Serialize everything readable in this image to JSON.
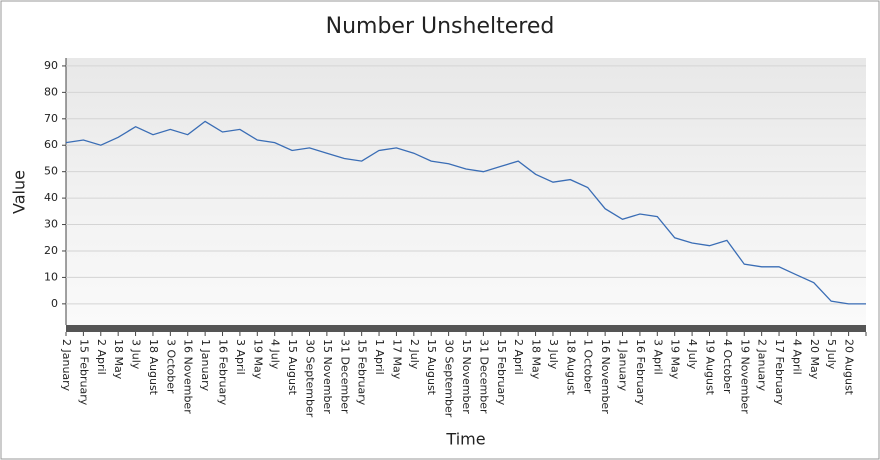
{
  "chart_data": {
    "type": "line",
    "title": "Number Unsheltered",
    "x_label": "Time",
    "y_label": "Value",
    "categories": [
      "2 January",
      "15 February",
      "2 April",
      "18 May",
      "3 July",
      "18 August",
      "3 October",
      "16 November",
      "1 January",
      "16 February",
      "3 April",
      "19 May",
      "4 July",
      "15 August",
      "30 September",
      "15 November",
      "31 December",
      "15 February",
      "1 April",
      "17 May",
      "2 July",
      "15 August",
      "30 September",
      "15 November",
      "31 December",
      "15 February",
      "2 April",
      "18 May",
      "3 July",
      "18 August",
      "1 October",
      "16 November",
      "1 January",
      "16 February",
      "3 April",
      "19 May",
      "4 July",
      "19 August",
      "4 October",
      "19 November",
      "2 January",
      "17 February",
      "4 April",
      "20 May",
      "5 July",
      "20 August",
      null
    ],
    "values": [
      61,
      62,
      60,
      63,
      67,
      64,
      66,
      64,
      69,
      65,
      66,
      62,
      61,
      58,
      59,
      57,
      55,
      54,
      58,
      59,
      57,
      54,
      53,
      51,
      50,
      52,
      54,
      49,
      46,
      47,
      44,
      36,
      32,
      34,
      33,
      25,
      23,
      22,
      24,
      15,
      14,
      14,
      11,
      8,
      1,
      0,
      0
    ],
    "color": "#3a6db5",
    "ylim": [
      -8,
      93
    ],
    "yticks": [
      0,
      10,
      20,
      30,
      40,
      50,
      60,
      70,
      80,
      90
    ],
    "grid": true
  }
}
